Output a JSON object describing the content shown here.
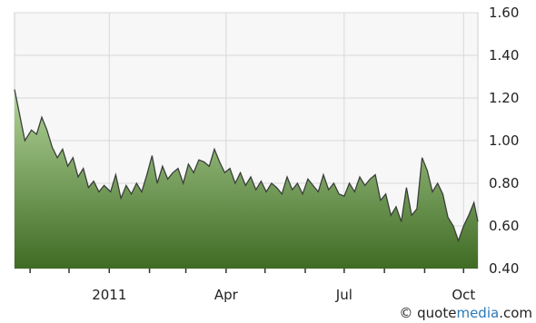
{
  "credit": {
    "symbol": "©",
    "brand_main": "quote",
    "brand_accent": "media",
    "brand_tld": ".com"
  },
  "colors": {
    "area_top": "#b3d59a",
    "area_bottom": "#3f6b24",
    "line": "#3a3f3a",
    "grid": "#d8d8d8",
    "plot_bg": "#f7f7f7"
  },
  "chart_data": {
    "type": "area",
    "title": "",
    "xlabel": "",
    "ylabel": "",
    "ylim": [
      0.4,
      1.6
    ],
    "yticks": [
      0.4,
      0.6,
      0.8,
      1.0,
      1.2,
      1.4,
      1.6
    ],
    "ytick_labels": [
      "0.40",
      "0.60",
      "0.80",
      "1.00",
      "1.20",
      "1.40",
      "1.60"
    ],
    "xlim": [
      "2010-10-20",
      "2011-10-12"
    ],
    "xticks": [
      "2011-01-01",
      "2011-04-01",
      "2011-07-01",
      "2011-10-01"
    ],
    "xtick_labels": [
      "2011",
      "Apr",
      "Jul",
      "Oct"
    ],
    "grid": true,
    "series": [
      {
        "x": [
          "2010-10-20",
          "2010-10-24",
          "2010-10-28",
          "2010-11-02",
          "2010-11-06",
          "2010-11-10",
          "2010-11-14",
          "2010-11-18",
          "2010-11-22",
          "2010-11-26",
          "2010-11-30",
          "2010-12-04",
          "2010-12-08",
          "2010-12-12",
          "2010-12-16",
          "2010-12-20",
          "2010-12-24",
          "2010-12-28",
          "2011-01-02",
          "2011-01-06",
          "2011-01-10",
          "2011-01-14",
          "2011-01-18",
          "2011-01-22",
          "2011-01-26",
          "2011-01-30",
          "2011-02-03",
          "2011-02-07",
          "2011-02-11",
          "2011-02-15",
          "2011-02-19",
          "2011-02-23",
          "2011-02-27",
          "2011-03-03",
          "2011-03-07",
          "2011-03-11",
          "2011-03-15",
          "2011-03-19",
          "2011-03-23",
          "2011-03-27",
          "2011-03-31",
          "2011-04-04",
          "2011-04-08",
          "2011-04-12",
          "2011-04-16",
          "2011-04-20",
          "2011-04-24",
          "2011-04-28",
          "2011-05-02",
          "2011-05-06",
          "2011-05-10",
          "2011-05-14",
          "2011-05-18",
          "2011-05-22",
          "2011-05-26",
          "2011-05-30",
          "2011-06-03",
          "2011-06-07",
          "2011-06-11",
          "2011-06-15",
          "2011-06-19",
          "2011-06-23",
          "2011-06-27",
          "2011-07-01",
          "2011-07-05",
          "2011-07-09",
          "2011-07-13",
          "2011-07-17",
          "2011-07-21",
          "2011-07-25",
          "2011-07-29",
          "2011-08-02",
          "2011-08-06",
          "2011-08-10",
          "2011-08-14",
          "2011-08-18",
          "2011-08-22",
          "2011-08-26",
          "2011-08-30",
          "2011-09-03",
          "2011-09-07",
          "2011-09-11",
          "2011-09-15",
          "2011-09-19",
          "2011-09-23",
          "2011-09-27",
          "2011-10-01",
          "2011-10-05",
          "2011-10-09",
          "2011-10-12"
        ],
        "y": [
          1.24,
          1.12,
          1.0,
          1.05,
          1.03,
          1.11,
          1.05,
          0.97,
          0.92,
          0.96,
          0.88,
          0.92,
          0.83,
          0.87,
          0.78,
          0.81,
          0.76,
          0.79,
          0.76,
          0.84,
          0.73,
          0.79,
          0.75,
          0.8,
          0.76,
          0.84,
          0.93,
          0.8,
          0.88,
          0.82,
          0.85,
          0.87,
          0.8,
          0.89,
          0.85,
          0.91,
          0.9,
          0.88,
          0.96,
          0.9,
          0.85,
          0.87,
          0.8,
          0.85,
          0.79,
          0.83,
          0.77,
          0.81,
          0.76,
          0.8,
          0.78,
          0.75,
          0.83,
          0.77,
          0.8,
          0.75,
          0.82,
          0.79,
          0.76,
          0.84,
          0.77,
          0.8,
          0.75,
          0.74,
          0.8,
          0.76,
          0.83,
          0.79,
          0.82,
          0.84,
          0.72,
          0.75,
          0.65,
          0.69,
          0.62,
          0.78,
          0.65,
          0.68,
          0.92,
          0.86,
          0.76,
          0.8,
          0.75,
          0.64,
          0.6,
          0.53,
          0.6,
          0.65,
          0.71,
          0.62
        ]
      }
    ]
  }
}
